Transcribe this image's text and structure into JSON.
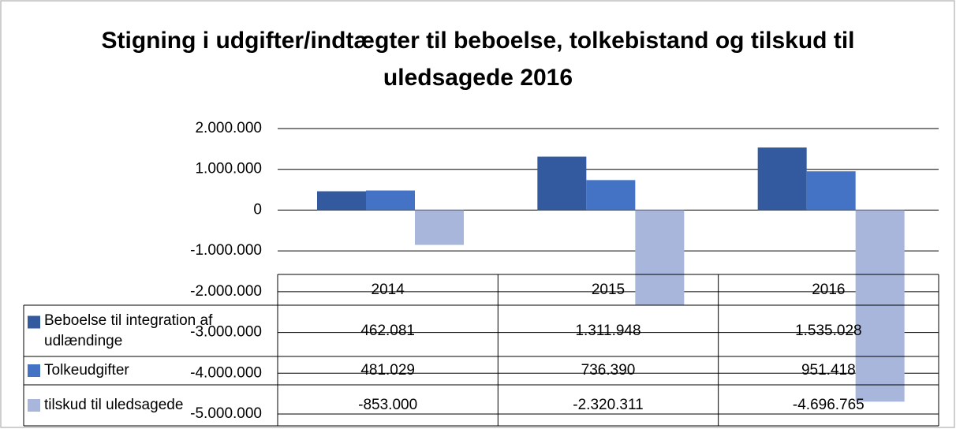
{
  "chart_data": {
    "type": "bar",
    "title": "Stigning i udgifter/indtægter til beboelse, tolkebistand og tilskud til uledsagede 2016",
    "categories": [
      "2014",
      "2015",
      "2016"
    ],
    "series": [
      {
        "name": "Beboelse til integration af udlændinge",
        "color": "#335a9e",
        "values": [
          462081,
          1311948,
          1535028
        ],
        "value_labels": [
          "462.081",
          "1.311.948",
          "1.535.028"
        ]
      },
      {
        "name": "Tolkeudgifter",
        "color": "#4472c4",
        "values": [
          481029,
          736390,
          951418
        ],
        "value_labels": [
          "481.029",
          "736.390",
          "951.418"
        ]
      },
      {
        "name": "tilskud til uledsagede",
        "color": "#a9b6dc",
        "values": [
          -853000,
          -2320311,
          -4696765
        ],
        "value_labels": [
          "-853.000",
          "-2.320.311",
          "-4.696.765"
        ]
      }
    ],
    "ylim": [
      -5000000,
      2000000
    ],
    "yticks": [
      {
        "value": 2000000,
        "label": "2.000.000"
      },
      {
        "value": 1000000,
        "label": "1.000.000"
      },
      0,
      {
        "value": -1000000,
        "label": "-1.000.000"
      },
      {
        "value": -2000000,
        "label": "-2.000.000"
      },
      {
        "value": -3000000,
        "label": "-3.000.000"
      },
      {
        "value": -4000000,
        "label": "-4.000.000"
      },
      {
        "value": -5000000,
        "label": "-5.000.000"
      }
    ],
    "grid": true
  }
}
